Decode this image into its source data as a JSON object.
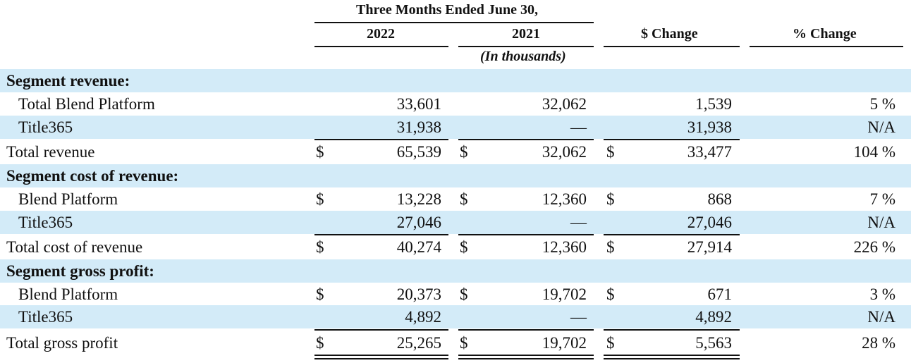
{
  "header": {
    "period": "Three Months Ended June 30,",
    "col_2022": "2022",
    "col_2021": "2021",
    "col_dollar_change": "$ Change",
    "col_pct_change": "% Change",
    "units": "(In thousands)"
  },
  "currency_symbol": "$",
  "row_shading_color": "#d3ebf8",
  "rows": [
    {
      "label": "Segment revenue:",
      "v2022": "",
      "v2021": "",
      "change": "",
      "pct": ""
    },
    {
      "label": "Total Blend Platform",
      "v2022": "33,601",
      "v2021": "32,062",
      "change": "1,539",
      "pct": "5 %"
    },
    {
      "label": "Title365",
      "v2022": "31,938",
      "v2021": "—",
      "change": "31,938",
      "pct": "N/A"
    },
    {
      "label": "Total revenue",
      "v2022": "65,539",
      "v2021": "32,062",
      "change": "33,477",
      "pct": "104 %"
    },
    {
      "label": "Segment cost of revenue:",
      "v2022": "",
      "v2021": "",
      "change": "",
      "pct": ""
    },
    {
      "label": "Blend Platform",
      "v2022": "13,228",
      "v2021": "12,360",
      "change": "868",
      "pct": "7 %"
    },
    {
      "label": "Title365",
      "v2022": "27,046",
      "v2021": "—",
      "change": "27,046",
      "pct": "N/A"
    },
    {
      "label": "Total cost of revenue",
      "v2022": "40,274",
      "v2021": "12,360",
      "change": "27,914",
      "pct": "226 %"
    },
    {
      "label": "Segment gross profit:",
      "v2022": "",
      "v2021": "",
      "change": "",
      "pct": ""
    },
    {
      "label": "Blend Platform",
      "v2022": "20,373",
      "v2021": "19,702",
      "change": "671",
      "pct": "3 %"
    },
    {
      "label": "Title365",
      "v2022": "4,892",
      "v2021": "—",
      "change": "4,892",
      "pct": "N/A"
    },
    {
      "label": "Total gross profit",
      "v2022": "25,265",
      "v2021": "19,702",
      "change": "5,563",
      "pct": "28 %"
    }
  ]
}
